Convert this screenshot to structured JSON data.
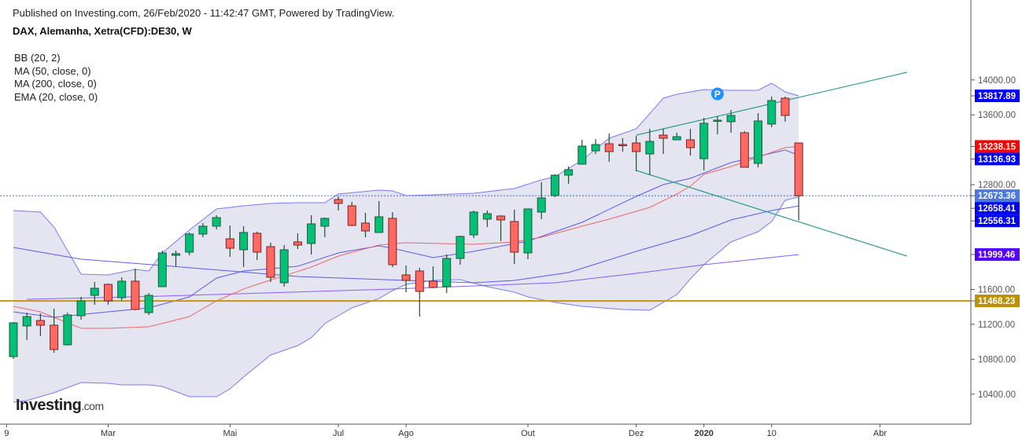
{
  "header": {
    "published": "Published on Investing.com, 26/Feb/2020 - 11:42:47 GMT, Powered by TradingView.",
    "title": "DAX, Alemanha, Xetra(CFD):DE30, W"
  },
  "legend": [
    "BB (20, 2)",
    "MA (50, close, 0)",
    "MA (200, close, 0)",
    "EMA (20, close, 0)"
  ],
  "logo": {
    "main": "Investing",
    "suffix": ".com"
  },
  "colors": {
    "up": "#03c076",
    "down": "#ff6961",
    "up_border": "#1d5a3a",
    "down_border": "#7a2222",
    "bb_fill": "#e5e5f1",
    "bb_line": "#6d6dfa",
    "ma50": "#4a4af0",
    "ma200": "#7b4dff",
    "ema20": "#ef5a5a",
    "support": "#c8960c",
    "trendline": "#2a9d8a",
    "last_price": "#3b6fe0"
  },
  "chart_data": {
    "type": "candlestick",
    "interval": "weekly",
    "ylim": [
      10056,
      14376
    ],
    "y_ticks": [
      10400,
      10800,
      11200,
      11600,
      12800,
      13600,
      14000
    ],
    "x_ticks": [
      {
        "label": "9",
        "date": "2019-01-14",
        "offset": -0.5
      },
      {
        "label": "Mar",
        "date": "2019-03-04"
      },
      {
        "label": "Mai",
        "date": "2019-05-06"
      },
      {
        "label": "Jul",
        "date": "2019-07-01"
      },
      {
        "label": "Ago",
        "date": "2019-08-05"
      },
      {
        "label": "Out",
        "date": "2019-10-07"
      },
      {
        "label": "Dez",
        "date": "2019-12-02"
      },
      {
        "label": "2020",
        "date": "2020-01-06",
        "bold": true
      },
      {
        "label": "10",
        "date": "2020-02-10"
      },
      {
        "label": "Abr",
        "date": "2020-04-06"
      }
    ],
    "candles": [
      [
        "2019-01-14",
        10830,
        11226,
        10803,
        11217
      ],
      [
        "2019-01-21",
        11181,
        11334,
        11019,
        11289
      ],
      [
        "2019-01-28",
        11244,
        11325,
        11064,
        11190
      ],
      [
        "2019-02-04",
        11190,
        11379,
        10875,
        10911
      ],
      [
        "2019-02-11",
        10965,
        11334,
        10955,
        11307
      ],
      [
        "2019-02-18",
        11298,
        11514,
        11253,
        11469
      ],
      [
        "2019-02-25",
        11532,
        11685,
        11424,
        11613
      ],
      [
        "2019-03-04",
        11658,
        11667,
        11424,
        11469
      ],
      [
        "2019-03-11",
        11505,
        11739,
        11469,
        11694
      ],
      [
        "2019-03-18",
        11694,
        11838,
        11360,
        11370
      ],
      [
        "2019-03-25",
        11334,
        11559,
        11307,
        11532
      ],
      [
        "2019-04-01",
        11631,
        12045,
        11631,
        12018
      ],
      [
        "2019-04-08",
        11991,
        12045,
        11865,
        12009
      ],
      [
        "2019-04-15",
        12027,
        12252,
        11991,
        12234
      ],
      [
        "2019-04-22",
        12234,
        12360,
        12198,
        12324
      ],
      [
        "2019-04-29",
        12324,
        12450,
        12288,
        12423
      ],
      [
        "2019-05-06",
        12180,
        12333,
        11973,
        12072
      ],
      [
        "2019-05-13",
        12054,
        12324,
        11856,
        12252
      ],
      [
        "2019-05-20",
        12243,
        12261,
        11937,
        12027
      ],
      [
        "2019-05-27",
        12090,
        12135,
        11685,
        11739
      ],
      [
        "2019-06-03",
        11676,
        12108,
        11631,
        12054
      ],
      [
        "2019-06-10",
        12144,
        12243,
        12063,
        12108
      ],
      [
        "2019-06-17",
        12126,
        12450,
        12000,
        12351
      ],
      [
        "2019-06-24",
        12324,
        12423,
        12198,
        12414
      ],
      [
        "2019-07-01",
        12630,
        12666,
        12504,
        12585
      ],
      [
        "2019-07-08",
        12558,
        12603,
        12324,
        12333
      ],
      [
        "2019-07-15",
        12360,
        12477,
        12198,
        12270
      ],
      [
        "2019-07-22",
        12252,
        12612,
        12252,
        12432
      ],
      [
        "2019-07-29",
        12414,
        12486,
        11856,
        11883
      ],
      [
        "2019-08-05",
        11766,
        11874,
        11568,
        11703
      ],
      [
        "2019-08-12",
        11811,
        11847,
        11289,
        11577
      ],
      [
        "2019-08-19",
        11694,
        11865,
        11613,
        11622
      ],
      [
        "2019-08-26",
        11631,
        12000,
        11559,
        11955
      ],
      [
        "2019-09-02",
        11955,
        12216,
        11883,
        12207
      ],
      [
        "2019-09-09",
        12225,
        12504,
        12189,
        12486
      ],
      [
        "2019-09-16",
        12405,
        12504,
        12315,
        12468
      ],
      [
        "2019-09-23",
        12441,
        12450,
        12153,
        12396
      ],
      [
        "2019-09-30",
        12378,
        12513,
        11892,
        12027
      ],
      [
        "2019-10-07",
        12018,
        12522,
        11946,
        12522
      ],
      [
        "2019-10-14",
        12486,
        12828,
        12405,
        12648
      ],
      [
        "2019-10-21",
        12675,
        12918,
        12657,
        12909
      ],
      [
        "2019-10-28",
        12909,
        13008,
        12810,
        12972
      ],
      [
        "2019-11-04",
        13035,
        13314,
        13035,
        13242
      ],
      [
        "2019-11-11",
        13188,
        13323,
        13152,
        13260
      ],
      [
        "2019-11-18",
        13269,
        13386,
        13062,
        13179
      ],
      [
        "2019-11-25",
        13260,
        13332,
        13179,
        13251
      ],
      [
        "2019-12-02",
        13278,
        13359,
        12954,
        13179
      ],
      [
        "2019-12-09",
        13152,
        13440,
        12909,
        13296
      ],
      [
        "2019-12-16",
        13368,
        13440,
        13152,
        13332
      ],
      [
        "2019-12-23",
        13314,
        13395,
        13314,
        13350
      ],
      [
        "2019-12-30",
        13314,
        13440,
        13134,
        13224
      ],
      [
        "2020-01-06",
        13098,
        13566,
        12963,
        13503
      ],
      [
        "2020-01-13",
        13530,
        13584,
        13377,
        13539
      ],
      [
        "2020-01-20",
        13521,
        13656,
        13395,
        13593
      ],
      [
        "2020-01-27",
        13395,
        13413,
        12999,
        12999
      ],
      [
        "2020-02-03",
        13044,
        13620,
        12999,
        13530
      ],
      [
        "2020-02-10",
        13494,
        13809,
        13458,
        13764
      ],
      [
        "2020-02-17",
        13791,
        13809,
        13521,
        13593
      ],
      [
        "2020-02-24",
        13278,
        13278,
        12390,
        12673.36
      ]
    ],
    "bollinger_upper": [
      [
        "2019-01-14",
        12504
      ],
      [
        "2019-01-28",
        12486
      ],
      [
        "2019-02-04",
        12315
      ],
      [
        "2019-02-18",
        11775
      ],
      [
        "2019-03-04",
        11766
      ],
      [
        "2019-03-18",
        11829
      ],
      [
        "2019-03-25",
        11811
      ],
      [
        "2019-04-01",
        12018
      ],
      [
        "2019-04-15",
        12279
      ],
      [
        "2019-04-29",
        12522
      ],
      [
        "2019-05-13",
        12558
      ],
      [
        "2019-05-27",
        12585
      ],
      [
        "2019-06-10",
        12594
      ],
      [
        "2019-06-24",
        12594
      ],
      [
        "2019-07-01",
        12693
      ],
      [
        "2019-07-22",
        12738
      ],
      [
        "2019-07-29",
        12729
      ],
      [
        "2019-08-05",
        12675
      ],
      [
        "2019-08-19",
        12684
      ],
      [
        "2019-09-09",
        12702
      ],
      [
        "2019-09-30",
        12756
      ],
      [
        "2019-10-14",
        12855
      ],
      [
        "2019-10-21",
        12891
      ],
      [
        "2019-11-04",
        13080
      ],
      [
        "2019-11-18",
        13332
      ],
      [
        "2019-12-02",
        13440
      ],
      [
        "2019-12-16",
        13791
      ],
      [
        "2019-12-23",
        13836
      ],
      [
        "2020-01-06",
        13890
      ],
      [
        "2020-01-20",
        13881
      ],
      [
        "2020-02-03",
        13881
      ],
      [
        "2020-02-10",
        13962
      ],
      [
        "2020-02-17",
        13863
      ],
      [
        "2020-02-24",
        13817.89
      ]
    ],
    "bollinger_middle": [
      [
        "2019-01-14",
        11343
      ],
      [
        "2019-02-04",
        11280
      ],
      [
        "2019-03-04",
        11343
      ],
      [
        "2019-03-25",
        11388
      ],
      [
        "2019-04-15",
        11514
      ],
      [
        "2019-04-29",
        11730
      ],
      [
        "2019-05-13",
        11811
      ],
      [
        "2019-06-10",
        11865
      ],
      [
        "2019-07-01",
        12018
      ],
      [
        "2019-07-22",
        12099
      ],
      [
        "2019-07-29",
        12072
      ],
      [
        "2019-08-19",
        11964
      ],
      [
        "2019-09-09",
        12036
      ],
      [
        "2019-10-07",
        12153
      ],
      [
        "2019-11-04",
        12369
      ],
      [
        "2019-12-02",
        12666
      ],
      [
        "2019-12-16",
        12801
      ],
      [
        "2019-12-30",
        12873
      ],
      [
        "2020-01-20",
        13053
      ],
      [
        "2020-02-17",
        13197
      ],
      [
        "2020-02-24",
        13136.93
      ]
    ],
    "bollinger_lower": [
      [
        "2019-01-14",
        10308
      ],
      [
        "2019-01-21",
        10326
      ],
      [
        "2019-02-04",
        10416
      ],
      [
        "2019-02-18",
        10533
      ],
      [
        "2019-03-04",
        10524
      ],
      [
        "2019-03-11",
        10506
      ],
      [
        "2019-03-25",
        10506
      ],
      [
        "2019-04-01",
        10488
      ],
      [
        "2019-04-15",
        10371
      ],
      [
        "2019-04-29",
        10371
      ],
      [
        "2019-05-06",
        10461
      ],
      [
        "2019-05-13",
        10596
      ],
      [
        "2019-05-27",
        10848
      ],
      [
        "2019-06-10",
        10956
      ],
      [
        "2019-06-17",
        11046
      ],
      [
        "2019-06-24",
        11208
      ],
      [
        "2019-07-08",
        11388
      ],
      [
        "2019-07-22",
        11496
      ],
      [
        "2019-07-29",
        11586
      ],
      [
        "2019-08-05",
        11658
      ],
      [
        "2019-08-19",
        11703
      ],
      [
        "2019-09-02",
        11712
      ],
      [
        "2019-09-16",
        11631
      ],
      [
        "2019-09-30",
        11568
      ],
      [
        "2019-10-07",
        11514
      ],
      [
        "2019-10-21",
        11451
      ],
      [
        "2019-11-04",
        11406
      ],
      [
        "2019-11-25",
        11370
      ],
      [
        "2019-12-09",
        11361
      ],
      [
        "2019-12-23",
        11541
      ],
      [
        "2019-12-30",
        11720
      ],
      [
        "2020-01-06",
        11883
      ],
      [
        "2020-01-20",
        12144
      ],
      [
        "2020-02-03",
        12261
      ],
      [
        "2020-02-10",
        12378
      ],
      [
        "2020-02-17",
        12620
      ],
      [
        "2020-02-24",
        12658.41
      ]
    ],
    "ma50": [
      [
        "2019-01-14",
        12081
      ],
      [
        "2019-02-18",
        11946
      ],
      [
        "2019-04-01",
        11874
      ],
      [
        "2019-05-06",
        11811
      ],
      [
        "2019-06-10",
        11748
      ],
      [
        "2019-08-05",
        11703
      ],
      [
        "2019-09-09",
        11676
      ],
      [
        "2019-09-30",
        11703
      ],
      [
        "2019-10-28",
        11793
      ],
      [
        "2019-12-02",
        12036
      ],
      [
        "2019-12-16",
        12126
      ],
      [
        "2019-12-30",
        12216
      ],
      [
        "2020-01-20",
        12396
      ],
      [
        "2020-02-10",
        12504
      ],
      [
        "2020-02-24",
        12556.31
      ]
    ],
    "ma200": [
      [
        "2019-01-21",
        11487
      ],
      [
        "2019-04-01",
        11523
      ],
      [
        "2019-07-29",
        11604
      ],
      [
        "2019-10-21",
        11676
      ],
      [
        "2019-12-02",
        11784
      ],
      [
        "2020-01-06",
        11883
      ],
      [
        "2020-02-24",
        11999.46
      ]
    ],
    "ema20": [
      [
        "2019-01-14",
        11406
      ],
      [
        "2019-01-28",
        11343
      ],
      [
        "2019-02-18",
        11154
      ],
      [
        "2019-03-04",
        11154
      ],
      [
        "2019-03-25",
        11172
      ],
      [
        "2019-04-15",
        11289
      ],
      [
        "2019-04-29",
        11469
      ],
      [
        "2019-05-13",
        11604
      ],
      [
        "2019-05-20",
        11658
      ],
      [
        "2019-06-17",
        11856
      ],
      [
        "2019-07-01",
        11982
      ],
      [
        "2019-07-22",
        12108
      ],
      [
        "2019-08-05",
        12135
      ],
      [
        "2019-09-09",
        12117
      ],
      [
        "2019-09-30",
        12144
      ],
      [
        "2019-10-14",
        12198
      ],
      [
        "2019-11-04",
        12324
      ],
      [
        "2019-11-18",
        12405
      ],
      [
        "2019-12-09",
        12540
      ],
      [
        "2019-12-23",
        12693
      ],
      [
        "2019-12-30",
        12783
      ],
      [
        "2020-01-06",
        12918
      ],
      [
        "2020-01-20",
        13008
      ],
      [
        "2020-02-03",
        13116
      ],
      [
        "2020-02-17",
        13225
      ],
      [
        "2020-02-24",
        13238.15
      ]
    ],
    "support_level": 11468.23,
    "last_price": 12673.36,
    "trendlines": [
      {
        "from": [
          "2019-12-02",
          13368
        ],
        "to": [
          "2020-04-20",
          14088
        ]
      },
      {
        "from": [
          "2019-12-02",
          12963
        ],
        "to": [
          "2020-04-20",
          11982
        ]
      }
    ],
    "marker": {
      "label": "P",
      "date": "2020-01-13",
      "price": 13840
    },
    "price_tags": [
      {
        "value": "13817.89",
        "color": "#0000ff"
      },
      {
        "value": "13238.15",
        "color": "#ff0000"
      },
      {
        "value": "13136.93",
        "color": "#0000ff"
      },
      {
        "value": "12673.36",
        "color": "#4a78e0"
      },
      {
        "value": "12658.41",
        "color": "#0000ff"
      },
      {
        "value": "12556.31",
        "color": "#0000ff"
      },
      {
        "value": "11999.46",
        "color": "#5500ff"
      },
      {
        "value": "11468.23",
        "color": "#bf8f00"
      }
    ]
  }
}
